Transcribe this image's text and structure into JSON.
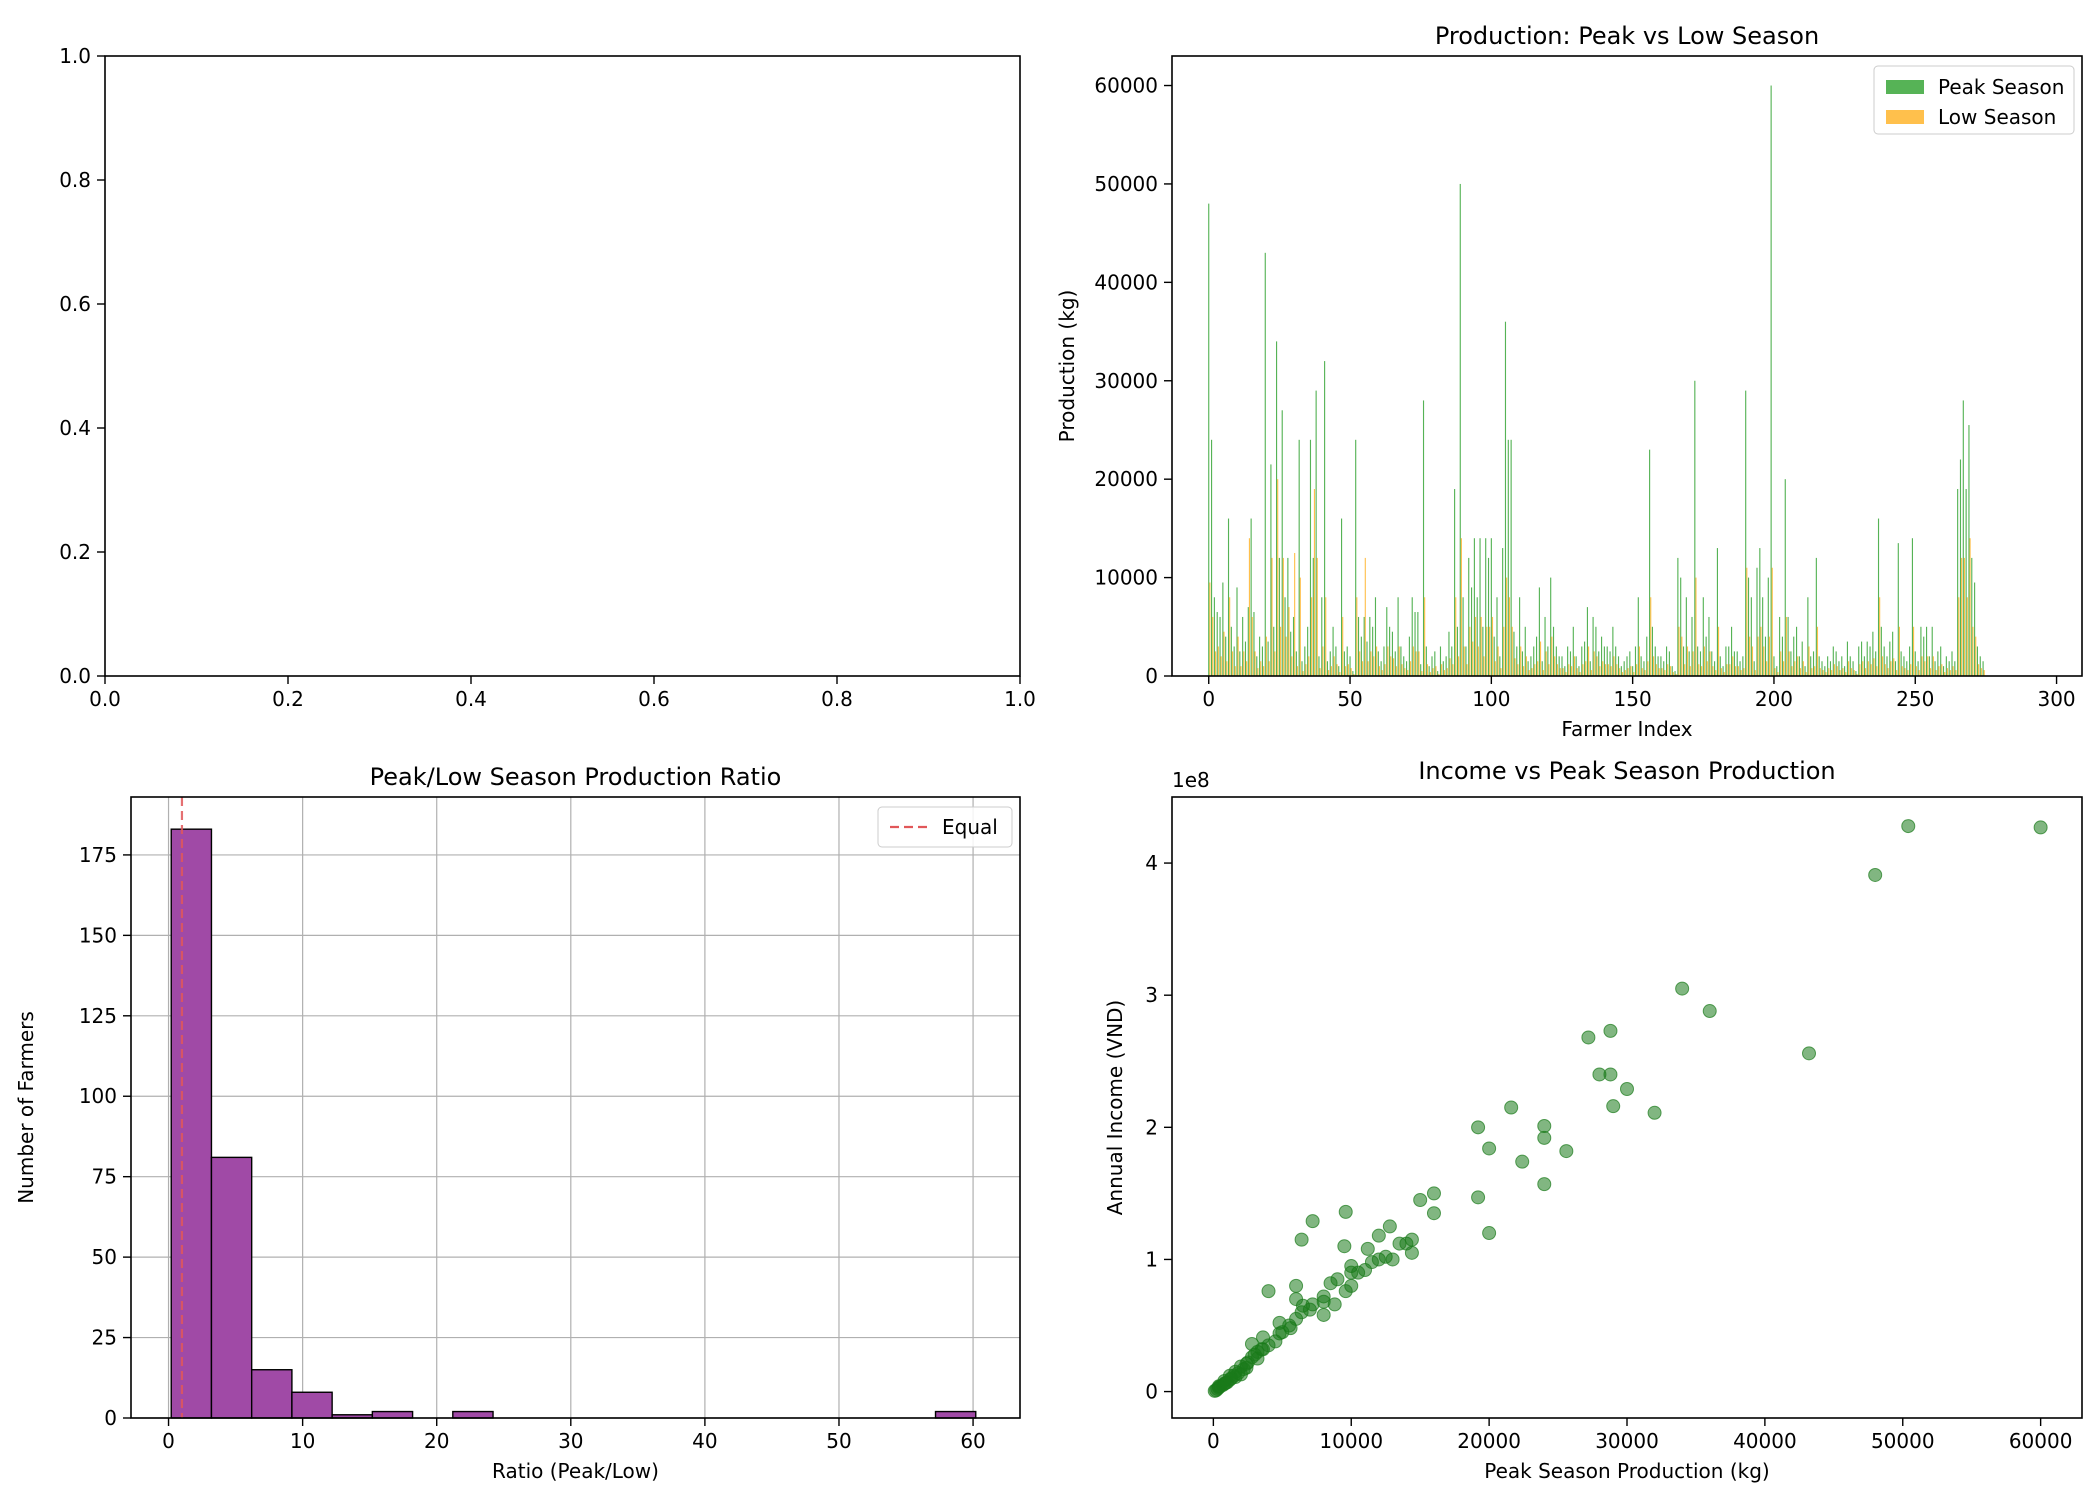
{
  "charts": [
    {
      "id": "empty",
      "type": "empty",
      "title": "",
      "xticks": [
        "0.0",
        "0.2",
        "0.4",
        "0.6",
        "0.8",
        "1.0"
      ],
      "yticks": [
        "0.0",
        "0.2",
        "0.4",
        "0.6",
        "0.8",
        "1.0"
      ],
      "xlim": [
        0,
        1
      ],
      "ylim": [
        0,
        1
      ]
    }
  ],
  "chart_data": [
    {
      "id": "bars",
      "type": "bar",
      "title": "Production: Peak vs Low Season",
      "xlabel": "Farmer Index",
      "ylabel": "Production (kg)",
      "xlim": [
        -13,
        309
      ],
      "ylim": [
        0,
        63000
      ],
      "xticks": [
        0,
        50,
        100,
        150,
        200,
        250,
        300
      ],
      "yticks": [
        0,
        10000,
        20000,
        30000,
        40000,
        50000,
        60000
      ],
      "legend_position": "top-right",
      "series": [
        {
          "name": "Peak Season",
          "color": "#2ca02c",
          "values": [
            48000,
            24000,
            8000,
            6500,
            6000,
            9500,
            4000,
            16000,
            5000,
            3000,
            9000,
            2500,
            6000,
            3500,
            7000,
            16000,
            6500,
            2000,
            4000,
            3000,
            43000,
            3500,
            21500,
            5000,
            34000,
            12000,
            27000,
            8000,
            12000,
            4500,
            6000,
            2500,
            24000,
            1500,
            3000,
            5000,
            24000,
            12000,
            29000,
            2000,
            8000,
            32000,
            1500,
            2500,
            5000,
            3000,
            1000,
            16000,
            2500,
            3000,
            2000,
            500,
            24000,
            6000,
            4000,
            6000,
            3500,
            6000,
            5000,
            8000,
            2500,
            1500,
            3000,
            7000,
            5000,
            4500,
            2500,
            8000,
            3000,
            2000,
            1500,
            4000,
            8000,
            6500,
            6500,
            1200,
            28000,
            3000,
            1000,
            2000,
            2500,
            500,
            3000,
            1500,
            2000,
            4500,
            3000,
            19000,
            5000,
            50000,
            8000,
            3000,
            12000,
            9000,
            14000,
            8000,
            14000,
            5000,
            14000,
            12000,
            14000,
            4000,
            8000,
            2000,
            13000,
            36000,
            24000,
            24000,
            4500,
            3000,
            8000,
            2500,
            5000,
            1500,
            2000,
            3000,
            4000,
            9000,
            1500,
            6000,
            3000,
            10000,
            5000,
            3000,
            2000,
            2000,
            1000,
            3000,
            2500,
            5000,
            2000,
            1000,
            3000,
            3500,
            7000,
            1500,
            6000,
            5000,
            2500,
            4000,
            3000,
            3000,
            2500,
            5000,
            3000,
            2000,
            1000,
            1500,
            2000,
            2500,
            1000,
            3000,
            8000,
            2000,
            1500,
            4000,
            23000,
            5000,
            3000,
            2000,
            2000,
            1500,
            3000,
            2500,
            1000,
            500,
            12000,
            10000,
            3000,
            8000,
            2500,
            6000,
            30000,
            3000,
            2500,
            8000,
            4000,
            6000,
            2500,
            1500,
            13000,
            2000,
            1000,
            3000,
            3000,
            5000,
            2500,
            2500,
            1500,
            2000,
            29000,
            10000,
            8000,
            1500,
            11000,
            13000,
            8000,
            4000,
            10000,
            60000,
            2000,
            1000,
            6000,
            4000,
            20000,
            6000,
            2500,
            4000,
            5000,
            2000,
            3500,
            1000,
            8000,
            2000,
            2500,
            12000,
            2000,
            1500,
            1000,
            2000,
            1500,
            3000,
            2500,
            1500,
            2000,
            1000,
            3500,
            2000,
            1500,
            500,
            3000,
            3500,
            2000,
            3500,
            3000,
            4500,
            2500,
            16000,
            5000,
            3000,
            2000,
            3500,
            4500,
            1500,
            13500,
            2500,
            2000,
            1500,
            3000,
            14000,
            2500,
            1500,
            5000,
            4000,
            5000,
            2000,
            5000,
            1500,
            2500,
            3000,
            1000,
            2000,
            1500,
            2500,
            1500,
            19000,
            22000,
            28000,
            19000,
            25500,
            12000,
            9500,
            3000,
            2000,
            1500
          ]
        },
        {
          "name": "Low Season",
          "color": "#ffa500",
          "values": [
            9500,
            6000,
            2500,
            3000,
            2000,
            4500,
            1500,
            8000,
            2500,
            1000,
            4000,
            1000,
            2500,
            1500,
            14000,
            6000,
            2500,
            800,
            1500,
            1000,
            4000,
            1500,
            12000,
            2500,
            20000,
            5000,
            12000,
            4000,
            7000,
            2000,
            12500,
            1000,
            10000,
            500,
            1200,
            2000,
            8000,
            19000,
            12000,
            800,
            3000,
            8000,
            600,
            1000,
            2000,
            1200,
            400,
            6000,
            1000,
            1200,
            800,
            200,
            8000,
            2500,
            1500,
            12000,
            1500,
            2500,
            2000,
            3000,
            1000,
            600,
            1200,
            3000,
            2000,
            1800,
            1000,
            3000,
            1200,
            800,
            600,
            1500,
            3000,
            2500,
            2500,
            500,
            8000,
            1200,
            400,
            800,
            1000,
            200,
            1200,
            600,
            800,
            1800,
            1200,
            8000,
            2000,
            14000,
            3000,
            1200,
            5000,
            3500,
            6000,
            3000,
            6000,
            2000,
            5000,
            5000,
            6000,
            1500,
            3000,
            800,
            5000,
            10000,
            8000,
            5000,
            1800,
            1200,
            3000,
            1000,
            2000,
            600,
            800,
            1200,
            1500,
            3500,
            600,
            2500,
            1200,
            4000,
            2000,
            1200,
            800,
            800,
            400,
            1200,
            1000,
            2000,
            800,
            400,
            1200,
            1500,
            3000,
            600,
            2500,
            2000,
            1000,
            1500,
            1200,
            1200,
            1000,
            2000,
            1200,
            800,
            400,
            600,
            800,
            1000,
            400,
            1200,
            3000,
            800,
            600,
            1500,
            8000,
            2000,
            1200,
            800,
            800,
            600,
            1200,
            1000,
            400,
            200,
            5000,
            4000,
            1200,
            3000,
            1000,
            2500,
            10000,
            1200,
            1000,
            3000,
            1500,
            2500,
            1000,
            600,
            5000,
            800,
            400,
            1200,
            1200,
            2000,
            1000,
            1000,
            600,
            800,
            11000,
            4000,
            3000,
            600,
            4000,
            5000,
            3000,
            1500,
            4000,
            11000,
            800,
            400,
            2500,
            1500,
            6000,
            2500,
            1000,
            1500,
            2000,
            800,
            1500,
            400,
            3000,
            800,
            1000,
            5000,
            800,
            600,
            400,
            800,
            600,
            1200,
            1000,
            600,
            800,
            400,
            1500,
            800,
            600,
            200,
            1200,
            1500,
            800,
            1500,
            1200,
            1800,
            1000,
            8000,
            2000,
            1200,
            800,
            1500,
            1800,
            600,
            5000,
            1000,
            800,
            600,
            1200,
            5000,
            1000,
            600,
            2000,
            1500,
            2000,
            800,
            2000,
            600,
            1000,
            1200,
            400,
            800,
            600,
            1000,
            600,
            8000,
            12000,
            12000,
            8000,
            14000,
            5000,
            4000,
            1200,
            800,
            600
          ]
        }
      ]
    },
    {
      "id": "hist",
      "type": "bar",
      "title": "Peak/Low Season Production Ratio",
      "xlabel": "Ratio (Peak/Low)",
      "ylabel": "Number of Farmers",
      "xlim": [
        -2.8,
        63.5
      ],
      "ylim": [
        0,
        193
      ],
      "xticks": [
        0,
        10,
        20,
        30,
        40,
        50,
        60
      ],
      "yticks": [
        0,
        25,
        50,
        75,
        100,
        125,
        150,
        175
      ],
      "grid": true,
      "legend_position": "top-right",
      "bin_edges": [
        0.2,
        3.2,
        6.2,
        9.2,
        12.2,
        15.2,
        18.2,
        21.2,
        24.2,
        27.2,
        30.2,
        33.2,
        36.2,
        39.2,
        42.2,
        45.2,
        48.2,
        51.2,
        54.2,
        57.2,
        60.2
      ],
      "values": [
        183,
        81,
        15,
        8,
        1,
        2,
        0,
        2,
        0,
        0,
        0,
        0,
        0,
        0,
        0,
        0,
        0,
        0,
        0,
        2
      ],
      "color": "#a04aa6",
      "reference_line": {
        "x": 1,
        "label": "Equal",
        "color": "#e15759"
      }
    },
    {
      "id": "scatter",
      "type": "scatter",
      "title": "Income vs Peak Season Production",
      "xlabel": "Peak Season Production (kg)",
      "ylabel": "Annual Income (VND)",
      "offset_label": "1e8",
      "xlim": [
        -3000,
        63000
      ],
      "ylim": [
        -20000000.0,
        450000000.0
      ],
      "xticks": [
        0,
        10000,
        20000,
        30000,
        40000,
        50000,
        60000
      ],
      "yticks": [
        0,
        100000000.0,
        200000000.0,
        300000000.0,
        400000000.0
      ],
      "ytick_labels": [
        "0",
        "1",
        "2",
        "3",
        "4"
      ],
      "color": "#1a7a1a",
      "x": [
        60000,
        50400,
        48000,
        43200,
        36000,
        34000,
        28800,
        28800,
        28000,
        27200,
        32000,
        30000,
        29000,
        25600,
        24000,
        24000,
        24000,
        22400,
        21600,
        20000,
        19200,
        19200,
        20000,
        16000,
        16000,
        14400,
        14400,
        12800,
        12000,
        13000,
        12000,
        11200,
        10000,
        9600,
        9600,
        10000,
        8800,
        8000,
        8000,
        8000,
        7200,
        7200,
        6400,
        6400,
        6000,
        6000,
        5600,
        4800,
        4800,
        4000,
        4000,
        3600,
        3600,
        3200,
        3200,
        2800,
        2800,
        2400,
        2400,
        2000,
        2000,
        1600,
        1600,
        1200,
        1200,
        800,
        800,
        400,
        400,
        200,
        10000,
        9000,
        6000,
        5000,
        3000,
        1000,
        15000,
        11000,
        7000,
        4500,
        2500,
        1500,
        500,
        300,
        5500,
        6500,
        8500,
        9500,
        3500,
        2200,
        1800,
        1300,
        700,
        900,
        100,
        12500,
        13500,
        14000,
        11500,
        10500
      ],
      "y": [
        427000000.0,
        428000000.0,
        391000000.0,
        256000000.0,
        288000000.0,
        305000000.0,
        273000000.0,
        240000000.0,
        240000000.0,
        268000000.0,
        211000000.0,
        229000000.0,
        216000000.0,
        182000000.0,
        201000000.0,
        192000000.0,
        157000000.0,
        174000000.0,
        215000000.0,
        120000000.0,
        147000000.0,
        200000000.0,
        184000000.0,
        150000000.0,
        135000000.0,
        115000000.0,
        105000000.0,
        125000000.0,
        118000000.0,
        100000000.0,
        100000000.0,
        108000000.0,
        95000000.0,
        136000000.0,
        76000000.0,
        80000000.0,
        66000000.0,
        72000000.0,
        58000000.0,
        68000000.0,
        129000000.0,
        66000000.0,
        115000000.0,
        60000000.0,
        55000000.0,
        80000000.0,
        48000000.0,
        44000000.0,
        52000000.0,
        76000000.0,
        35000000.0,
        41000000.0,
        32000000.0,
        30000000.0,
        25000000.0,
        26000000.0,
        36000000.0,
        21000000.0,
        18000000.0,
        19000000.0,
        13000000.0,
        15000000.0,
        11000000.0,
        9000000.0,
        12000000.0,
        6000000.0,
        8000000.0,
        3000000.0,
        4000000.0,
        1000000.0,
        90000000.0,
        85000000.0,
        70000000.0,
        45000000.0,
        28000000.0,
        7000000.0,
        145000000.0,
        92000000.0,
        62000000.0,
        38000000.0,
        22000000.0,
        12000000.0,
        4000000.0,
        2000000.0,
        50000000.0,
        65000000.0,
        82000000.0,
        110000000.0,
        32000000.0,
        17000000.0,
        14000000.0,
        10000000.0,
        5000000.0,
        6500000.0,
        500000.0,
        102000000.0,
        112000000.0,
        112000000.0,
        98000000.0,
        90000000.0
      ]
    }
  ]
}
